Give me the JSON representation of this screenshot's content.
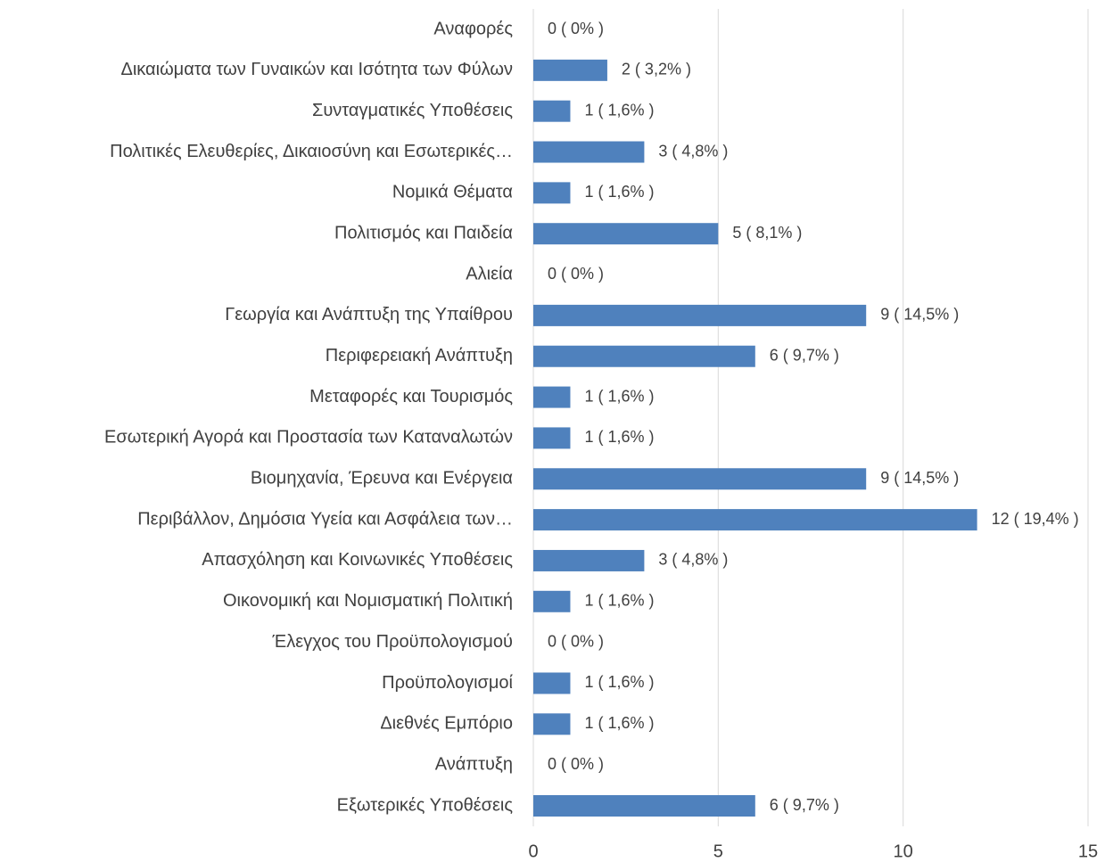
{
  "chart_data": {
    "type": "bar",
    "orientation": "horizontal",
    "categories": [
      "Αναφορές",
      "Δικαιώματα των Γυναικών και Ισότητα των Φύλων",
      "Συνταγματικές Υποθέσεις",
      "Πολιτικές Ελευθερίες, Δικαιοσύνη και Εσωτερικές…",
      "Νομικά Θέματα",
      "Πολιτισμός και Παιδεία",
      "Αλιεία",
      "Γεωργία και Ανάπτυξη της Υπαίθρου",
      "Περιφερειακή Ανάπτυξη",
      "Μεταφορές και Τουρισμός",
      "Εσωτερική Αγορά και Προστασία των Καταναλωτών",
      "Βιομηχανία, Έρευνα και Ενέργεια",
      "Περιβάλλον, Δημόσια Υγεία και Ασφάλεια των…",
      "Απασχόληση και Κοινωνικές Υποθέσεις",
      "Οικονομική και Νομισματική Πολιτική",
      "Έλεγχος του Προϋπολογισμού",
      "Προϋπολογισμοί",
      "Διεθνές Εμπόριο",
      "Ανάπτυξη",
      "Εξωτερικές Υποθέσεις"
    ],
    "values": [
      0,
      2,
      1,
      3,
      1,
      5,
      0,
      9,
      6,
      1,
      1,
      9,
      12,
      3,
      1,
      0,
      1,
      1,
      0,
      6
    ],
    "value_labels": [
      "0 ( 0% )",
      "2 ( 3,2% )",
      "1 ( 1,6% )",
      "3 ( 4,8% )",
      "1 ( 1,6% )",
      "5 ( 8,1% )",
      "0 ( 0% )",
      "9 ( 14,5% )",
      "6 ( 9,7% )",
      "1 ( 1,6% )",
      "1 ( 1,6% )",
      "9 ( 14,5% )",
      "12 ( 19,4% )",
      "3 ( 4,8% )",
      "1 ( 1,6% )",
      "0 ( 0% )",
      "1 ( 1,6% )",
      "1 ( 1,6% )",
      "0 ( 0% )",
      "6 ( 9,7% )"
    ],
    "color": "#4f81bd",
    "xlim": [
      0,
      15
    ],
    "xticks": [
      0,
      5,
      10,
      15
    ],
    "grid": true
  }
}
